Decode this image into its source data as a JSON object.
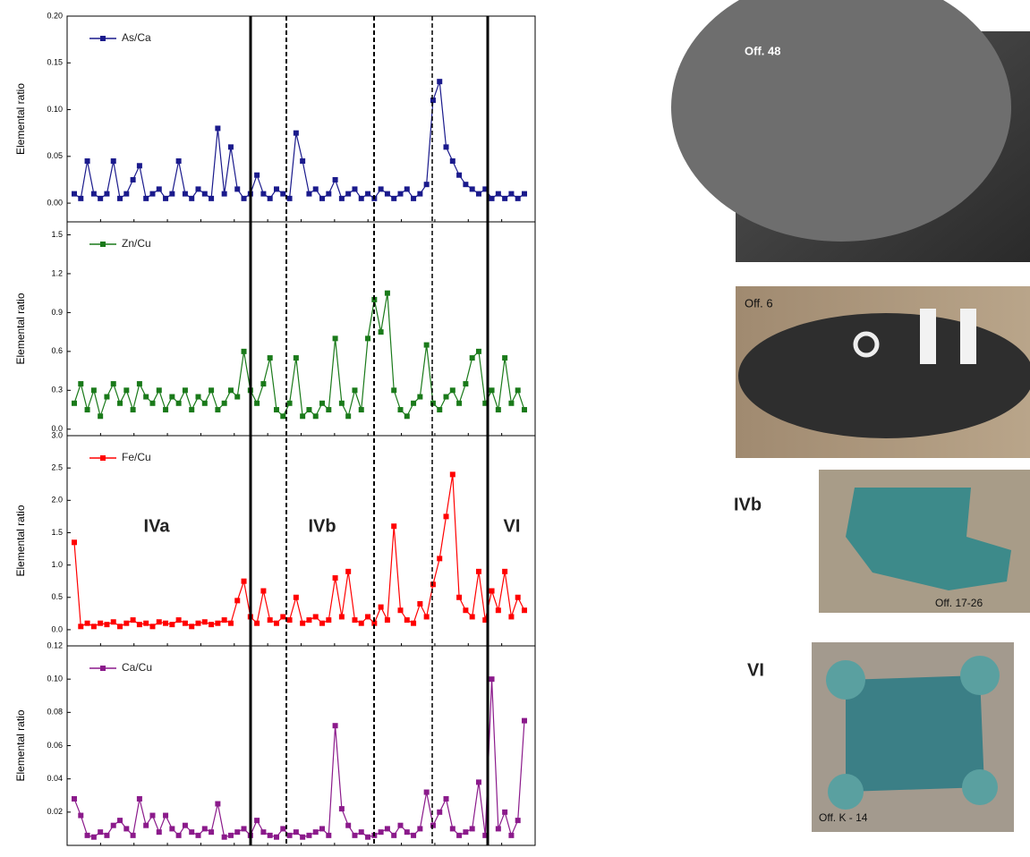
{
  "chart_data": [
    {
      "type": "line",
      "y_label": "Elemental ratio",
      "series": [
        {
          "name": "As/Ca",
          "color": "#1a1a8c",
          "values": [
            0.01,
            0.005,
            0.045,
            0.01,
            0.005,
            0.01,
            0.045,
            0.005,
            0.01,
            0.025,
            0.04,
            0.005,
            0.01,
            0.015,
            0.005,
            0.01,
            0.045,
            0.01,
            0.005,
            0.015,
            0.01,
            0.005,
            0.08,
            0.01,
            0.06,
            0.015,
            0.005,
            0.01,
            0.03,
            0.01,
            0.005,
            0.015,
            0.01,
            0.005,
            0.075,
            0.045,
            0.01,
            0.015,
            0.005,
            0.01,
            0.025,
            0.005,
            0.01,
            0.015,
            0.005,
            0.01,
            0.005,
            0.015,
            0.01,
            0.005,
            0.01,
            0.015,
            0.005,
            0.01,
            0.02,
            0.11,
            0.13,
            0.06,
            0.045,
            0.03,
            0.02,
            0.015,
            0.01,
            0.015,
            0.005,
            0.01,
            0.005,
            0.01,
            0.005,
            0.01
          ]
        }
      ],
      "ylim": [
        -0.02,
        0.2
      ],
      "yticks": [
        {
          "value": 0,
          "label": "0.00"
        },
        {
          "value": 0.05,
          "label": "0.05"
        },
        {
          "value": 0.1,
          "label": "0.10"
        },
        {
          "value": 0.15,
          "label": "0.15"
        },
        {
          "value": 0.2,
          "label": "0.20"
        }
      ]
    },
    {
      "type": "line",
      "y_label": "Elemental ratio",
      "series": [
        {
          "name": "Zn/Cu",
          "color": "#1a7a1a",
          "values": [
            0.2,
            0.35,
            0.15,
            0.3,
            0.1,
            0.25,
            0.35,
            0.2,
            0.3,
            0.15,
            0.35,
            0.25,
            0.2,
            0.3,
            0.15,
            0.25,
            0.2,
            0.3,
            0.15,
            0.25,
            0.2,
            0.3,
            0.15,
            0.2,
            0.3,
            0.25,
            0.6,
            0.3,
            0.2,
            0.35,
            0.55,
            0.15,
            0.1,
            0.2,
            0.55,
            0.1,
            0.15,
            0.1,
            0.2,
            0.15,
            0.7,
            0.2,
            0.1,
            0.3,
            0.15,
            0.7,
            1.0,
            0.75,
            1.05,
            0.3,
            0.15,
            0.1,
            0.2,
            0.25,
            0.65,
            0.2,
            0.15,
            0.25,
            0.3,
            0.2,
            0.35,
            0.55,
            0.6,
            0.2,
            0.3,
            0.15,
            0.55,
            0.2,
            0.3,
            0.15
          ]
        }
      ],
      "ylim": [
        -0.05,
        1.6
      ],
      "yticks": [
        {
          "value": 0,
          "label": "0.0"
        },
        0.3,
        0.6,
        0.9,
        1.2,
        1.5
      ]
    },
    {
      "type": "line",
      "y_label": "Elemental ratio",
      "series": [
        {
          "name": "Fe/Cu",
          "color": "#ff0000",
          "values": [
            1.35,
            0.05,
            0.1,
            0.05,
            0.1,
            0.08,
            0.12,
            0.05,
            0.1,
            0.15,
            0.08,
            0.1,
            0.05,
            0.12,
            0.1,
            0.08,
            0.15,
            0.1,
            0.05,
            0.1,
            0.12,
            0.08,
            0.1,
            0.15,
            0.1,
            0.45,
            0.75,
            0.2,
            0.1,
            0.6,
            0.15,
            0.1,
            0.2,
            0.15,
            0.5,
            0.1,
            0.15,
            0.2,
            0.1,
            0.15,
            0.8,
            0.2,
            0.9,
            0.15,
            0.1,
            0.2,
            0.1,
            0.35,
            0.15,
            1.6,
            0.3,
            0.15,
            0.1,
            0.4,
            0.2,
            0.7,
            1.1,
            1.75,
            2.4,
            0.5,
            0.3,
            0.2,
            0.9,
            0.15,
            0.6,
            0.3,
            0.9,
            0.2,
            0.5,
            0.3
          ]
        }
      ],
      "ylim": [
        -0.25,
        3.0
      ],
      "yticks": [
        {
          "value": 0,
          "label": "0.0"
        },
        0.5,
        {
          "value": 1,
          "label": "1.0"
        },
        1.5,
        {
          "value": 2,
          "label": "2.0"
        },
        2.5,
        {
          "value": 3,
          "label": "3.0"
        }
      ],
      "annotations": [
        "IVa",
        "IVb",
        "VI"
      ]
    },
    {
      "type": "line",
      "y_label": "Elemental ratio",
      "series": [
        {
          "name": "Ca/Cu",
          "color": "#8b1a8b",
          "values": [
            0.028,
            0.018,
            0.006,
            0.005,
            0.008,
            0.006,
            0.012,
            0.015,
            0.01,
            0.006,
            0.028,
            0.012,
            0.018,
            0.008,
            0.018,
            0.01,
            0.006,
            0.012,
            0.008,
            0.006,
            0.01,
            0.008,
            0.025,
            0.005,
            0.006,
            0.008,
            0.01,
            0.006,
            0.015,
            0.008,
            0.006,
            0.005,
            0.01,
            0.006,
            0.008,
            0.005,
            0.006,
            0.008,
            0.01,
            0.006,
            0.072,
            0.022,
            0.012,
            0.006,
            0.008,
            0.005,
            0.006,
            0.008,
            0.01,
            0.006,
            0.012,
            0.008,
            0.006,
            0.01,
            0.032,
            0.012,
            0.02,
            0.028,
            0.01,
            0.006,
            0.008,
            0.01,
            0.038,
            0.006,
            0.1,
            0.01,
            0.02,
            0.006,
            0.015,
            0.075
          ]
        }
      ],
      "ylim": [
        0,
        0.12
      ],
      "yticks": [
        0.02,
        0.04,
        0.06,
        0.08,
        {
          "value": 0.1,
          "label": "0.10"
        },
        0.12
      ]
    }
  ],
  "photos": [
    "Off. 48",
    "Off. 6",
    "Off. 17-26",
    "Off. K - 14"
  ],
  "side_labels": [
    "IVb",
    "VI"
  ]
}
